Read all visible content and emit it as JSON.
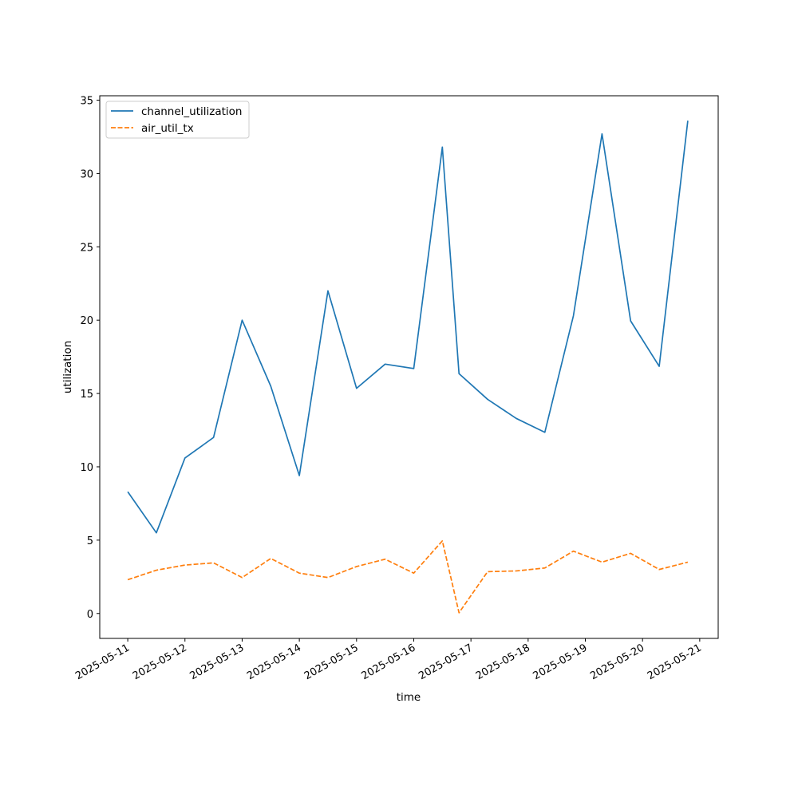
{
  "chart_data": {
    "type": "line",
    "title": "",
    "xlabel": "time",
    "ylabel": "utilization",
    "x": [
      "2025-05-11 00:00",
      "2025-05-11 12:00",
      "2025-05-12 00:00",
      "2025-05-12 12:00",
      "2025-05-13 00:00",
      "2025-05-13 12:00",
      "2025-05-14 00:00",
      "2025-05-14 12:00",
      "2025-05-15 00:00",
      "2025-05-15 12:00",
      "2025-05-16 00:00",
      "2025-05-16 12:00",
      "2025-05-16 19:00",
      "2025-05-17 07:00",
      "2025-05-17 19:00",
      "2025-05-18 07:00",
      "2025-05-18 19:00",
      "2025-05-19 07:00",
      "2025-05-19 19:00",
      "2025-05-20 07:00",
      "2025-05-20 19:00"
    ],
    "series": [
      {
        "name": "channel_utilization",
        "color": "#1f77b4",
        "style": "solid",
        "values": [
          8.3,
          5.5,
          10.6,
          12.0,
          20.0,
          15.5,
          9.4,
          22.0,
          15.35,
          17.0,
          16.7,
          31.8,
          16.35,
          14.6,
          13.3,
          12.35,
          20.3,
          32.7,
          19.95,
          16.85,
          33.6
        ]
      },
      {
        "name": "air_util_tx",
        "color": "#ff7f0e",
        "style": "dashed",
        "values": [
          2.3,
          2.95,
          3.3,
          3.45,
          2.45,
          3.75,
          2.75,
          2.45,
          3.2,
          3.7,
          2.75,
          4.95,
          0.05,
          2.85,
          2.9,
          3.1,
          4.25,
          3.5,
          4.1,
          3.0,
          3.5
        ]
      }
    ],
    "ylim": [
      -1.7,
      35.3
    ],
    "yticks": [
      0,
      5,
      10,
      15,
      20,
      25,
      30,
      35
    ],
    "xlim": [
      "2025-05-10 12:15",
      "2025-05-21 07:45"
    ],
    "xticks": [
      "2025-05-11",
      "2025-05-12",
      "2025-05-13",
      "2025-05-14",
      "2025-05-15",
      "2025-05-16",
      "2025-05-17",
      "2025-05-18",
      "2025-05-19",
      "2025-05-20",
      "2025-05-21"
    ],
    "legend_position": "top-left",
    "grid": false
  }
}
